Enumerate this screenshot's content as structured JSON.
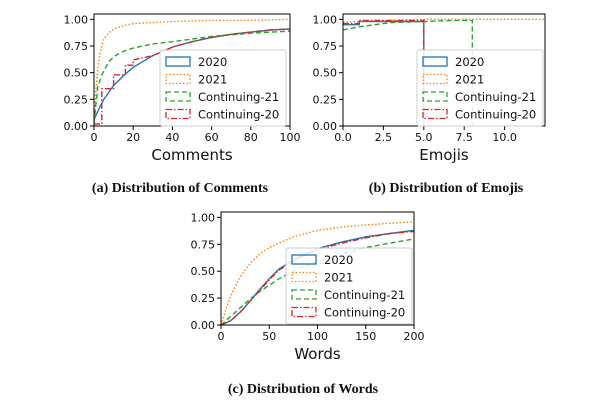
{
  "colors": {
    "2020": "#1f77b4",
    "2021": "#ff7f0e",
    "Continuing-21": "#2ca02c",
    "Continuing-20": "#d62728"
  },
  "legend_labels": [
    "2020",
    "2021",
    "Continuing-21",
    "Continuing-20"
  ],
  "legend_styles": {
    "2020": "solid",
    "2021": "dotted",
    "Continuing-21": "dashed",
    "Continuing-20": "dashdot"
  },
  "chart_data": [
    {
      "type": "line",
      "caption": "(a) Distribution of Comments",
      "xlabel": "Comments",
      "ylabel": "",
      "xlim": [
        0,
        100
      ],
      "ylim": [
        0,
        1.05
      ],
      "xticks": [
        0,
        20,
        40,
        60,
        80,
        100
      ],
      "yticks": [
        0.0,
        0.25,
        0.5,
        0.75,
        1.0
      ],
      "xtick_labels": [
        "0",
        "20",
        "40",
        "60",
        "80",
        "100"
      ],
      "ytick_labels": [
        "0.00",
        "0.25",
        "0.50",
        "0.75",
        "1.00"
      ],
      "legend_position": "center-right",
      "series": [
        {
          "name": "2020",
          "x": [
            0,
            2,
            5,
            10,
            15,
            20,
            30,
            40,
            50,
            60,
            70,
            80,
            90,
            100
          ],
          "values": [
            0.06,
            0.14,
            0.25,
            0.38,
            0.47,
            0.55,
            0.66,
            0.74,
            0.79,
            0.83,
            0.86,
            0.88,
            0.9,
            0.91
          ]
        },
        {
          "name": "2021",
          "x": [
            0,
            1,
            2,
            3,
            5,
            8,
            10,
            15,
            20,
            30,
            40,
            60,
            80,
            100
          ],
          "values": [
            0.02,
            0.35,
            0.55,
            0.68,
            0.82,
            0.88,
            0.91,
            0.94,
            0.96,
            0.97,
            0.98,
            0.99,
            0.99,
            1.0
          ]
        },
        {
          "name": "Continuing-21",
          "x": [
            0,
            2,
            5,
            8,
            10,
            15,
            20,
            30,
            40,
            60,
            80,
            100
          ],
          "values": [
            0.03,
            0.38,
            0.52,
            0.61,
            0.65,
            0.7,
            0.73,
            0.77,
            0.79,
            0.84,
            0.87,
            0.89
          ]
        },
        {
          "name": "Continuing-20",
          "x": [
            0,
            4,
            4,
            10,
            10,
            16,
            16,
            20,
            20,
            30,
            40,
            50,
            60,
            70,
            80,
            90,
            100
          ],
          "values": [
            0.02,
            0.02,
            0.35,
            0.35,
            0.48,
            0.48,
            0.57,
            0.57,
            0.62,
            0.66,
            0.74,
            0.79,
            0.83,
            0.86,
            0.88,
            0.9,
            0.91
          ]
        }
      ]
    },
    {
      "type": "line",
      "caption": "(b) Distribution of Emojis",
      "xlabel": "Emojis",
      "ylabel": "",
      "xlim": [
        0,
        12.5
      ],
      "ylim": [
        0,
        1.05
      ],
      "xticks": [
        0,
        2.5,
        5,
        7.5,
        10
      ],
      "yticks": [
        0.0,
        0.25,
        0.5,
        0.75,
        1.0
      ],
      "xtick_labels": [
        "0.0",
        "2.5",
        "5.0",
        "7.5",
        "10.0"
      ],
      "ytick_labels": [
        "0.00",
        "0.25",
        "0.50",
        "0.75",
        "1.00"
      ],
      "legend_position": "lower-right",
      "series": [
        {
          "name": "2020",
          "x": [
            0,
            1,
            1,
            5,
            5
          ],
          "values": [
            0.95,
            0.95,
            0.98,
            0.98,
            0
          ]
        },
        {
          "name": "2021",
          "x": [
            0,
            1,
            2,
            3,
            5,
            8,
            12.5
          ],
          "values": [
            0.97,
            0.98,
            0.99,
            0.99,
            1.0,
            1.0,
            1.0
          ]
        },
        {
          "name": "Continuing-21",
          "x": [
            0,
            1,
            2,
            3,
            5,
            7,
            8,
            8
          ],
          "values": [
            0.9,
            0.93,
            0.95,
            0.97,
            0.98,
            0.99,
            0.99,
            0
          ]
        },
        {
          "name": "Continuing-20",
          "x": [
            0,
            1,
            1,
            5,
            5
          ],
          "values": [
            0.96,
            0.96,
            0.99,
            0.99,
            0
          ]
        }
      ]
    },
    {
      "type": "line",
      "caption": "(c) Distribution of Words",
      "xlabel": "Words",
      "ylabel": "",
      "xlim": [
        0,
        200
      ],
      "ylim": [
        0,
        1.05
      ],
      "xticks": [
        0,
        50,
        100,
        150,
        200
      ],
      "yticks": [
        0.0,
        0.25,
        0.5,
        0.75,
        1.0
      ],
      "xtick_labels": [
        "0",
        "50",
        "100",
        "150",
        "200"
      ],
      "ytick_labels": [
        "0.00",
        "0.25",
        "0.50",
        "0.75",
        "1.00"
      ],
      "legend_position": "center-right",
      "series": [
        {
          "name": "2020",
          "x": [
            0,
            10,
            20,
            30,
            40,
            50,
            60,
            80,
            100,
            125,
            150,
            175,
            200
          ],
          "values": [
            0,
            0.04,
            0.12,
            0.22,
            0.33,
            0.43,
            0.52,
            0.63,
            0.71,
            0.77,
            0.82,
            0.85,
            0.88
          ]
        },
        {
          "name": "2021",
          "x": [
            0,
            5,
            10,
            20,
            30,
            40,
            50,
            75,
            100,
            125,
            150,
            200
          ],
          "values": [
            0,
            0.14,
            0.27,
            0.45,
            0.57,
            0.66,
            0.72,
            0.82,
            0.88,
            0.91,
            0.93,
            0.96
          ]
        },
        {
          "name": "Continuing-21",
          "x": [
            0,
            10,
            20,
            30,
            40,
            50,
            60,
            80,
            100,
            125,
            150,
            175,
            200
          ],
          "values": [
            0,
            0.08,
            0.16,
            0.24,
            0.31,
            0.37,
            0.43,
            0.52,
            0.59,
            0.66,
            0.72,
            0.76,
            0.8
          ]
        },
        {
          "name": "Continuing-20",
          "x": [
            0,
            10,
            20,
            30,
            40,
            50,
            60,
            80,
            100,
            125,
            150,
            175,
            200
          ],
          "values": [
            0,
            0.04,
            0.12,
            0.22,
            0.32,
            0.42,
            0.51,
            0.62,
            0.7,
            0.76,
            0.81,
            0.85,
            0.87
          ]
        }
      ]
    }
  ]
}
